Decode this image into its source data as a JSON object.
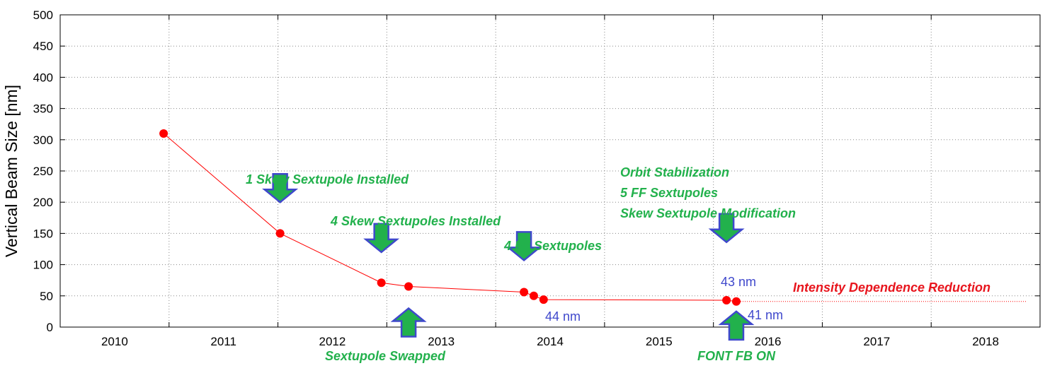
{
  "chart_data": {
    "type": "scatter",
    "ylabel": "Vertical Beam Size [nm]",
    "xlabel": "",
    "xlim": [
      2009.5,
      2018.5
    ],
    "ylim": [
      0,
      500
    ],
    "grid": true,
    "x_ticks": [
      2010,
      2011,
      2012,
      2013,
      2014,
      2015,
      2016,
      2017,
      2018
    ],
    "y_ticks": [
      0,
      50,
      100,
      150,
      200,
      250,
      300,
      350,
      400,
      450,
      500
    ],
    "series": [
      {
        "color": "#ff0000",
        "points": [
          {
            "x": 2010.45,
            "y": 310
          },
          {
            "x": 2011.52,
            "y": 150
          },
          {
            "x": 2012.45,
            "y": 71
          },
          {
            "x": 2012.7,
            "y": 65
          },
          {
            "x": 2013.76,
            "y": 56
          },
          {
            "x": 2013.85,
            "y": 50
          },
          {
            "x": 2013.94,
            "y": 44
          },
          {
            "x": 2015.62,
            "y": 43
          },
          {
            "x": 2015.71,
            "y": 41
          }
        ]
      }
    ],
    "reference_line": {
      "y": 41,
      "x_from": 2015.71,
      "x_to": 2018.38,
      "style": "dotted",
      "color": "#ff0000"
    },
    "annotations": [
      {
        "text": "1 Skew Sextupole Installed",
        "color": "green",
        "x": 2011.52,
        "arrow": "down",
        "arrow_y": 200
      },
      {
        "text": "4 Skew Sextupoles Installed",
        "color": "green",
        "x": 2012.45,
        "arrow": "down",
        "arrow_y": 120
      },
      {
        "text": "Sextupole Swapped",
        "color": "green",
        "x": 2012.7,
        "arrow": "up",
        "arrow_y": 30
      },
      {
        "text": "4 FF Sextupoles",
        "color": "green",
        "x": 2013.76,
        "arrow": "down",
        "arrow_y": 107
      },
      {
        "text": "Orbit Stabilization",
        "color": "green"
      },
      {
        "text": "5 FF Sextupoles",
        "color": "green"
      },
      {
        "text": "Skew Sextupole Modification",
        "color": "green",
        "x": 2015.62,
        "arrow": "down",
        "arrow_y": 136
      },
      {
        "text": "FONT FB ON",
        "color": "green",
        "x": 2015.71,
        "arrow": "up",
        "arrow_y": 25
      },
      {
        "text": "43 nm",
        "color": "blue"
      },
      {
        "text": "44 nm",
        "color": "blue"
      },
      {
        "text": "41 nm",
        "color": "blue"
      },
      {
        "text": "Intensity Dependence Reduction",
        "color": "red"
      }
    ]
  }
}
